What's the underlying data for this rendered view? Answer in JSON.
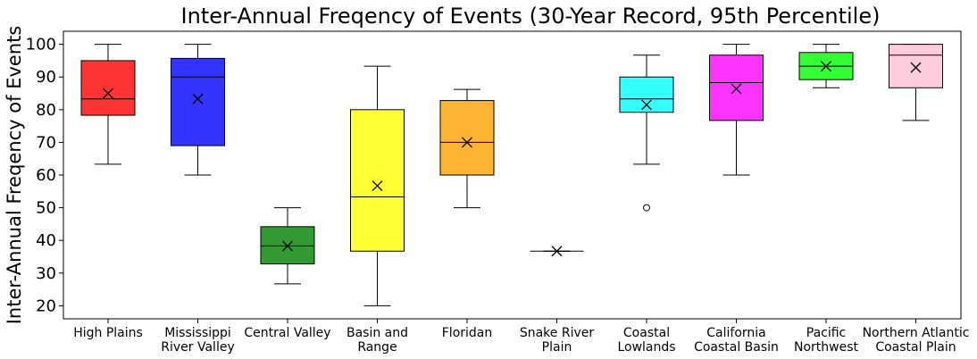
{
  "chart_data": {
    "type": "box",
    "title": "Inter-Annual Freqency of Events (30-Year Record, 95th Percentile)",
    "xlabel": "",
    "ylabel": "Inter-Annual Freqency of Events",
    "ylim": [
      16,
      104
    ],
    "yticks": [
      20,
      30,
      40,
      50,
      60,
      70,
      80,
      90,
      100
    ],
    "grid": false,
    "legend": "none",
    "categories": [
      {
        "label": "High Plains",
        "label_lines": [
          "High Plains"
        ],
        "color": "#ff3333",
        "whisker_low": 63.3,
        "q1": 78.3,
        "median": 83.3,
        "q3": 95.0,
        "whisker_high": 100.0,
        "mean": 85.0,
        "outliers": []
      },
      {
        "label": "Mississippi River Valley",
        "label_lines": [
          "Mississippi",
          "River Valley"
        ],
        "color": "#3333ff",
        "whisker_low": 60.0,
        "q1": 69.0,
        "median": 90.0,
        "q3": 95.7,
        "whisker_high": 100.0,
        "mean": 83.3,
        "outliers": []
      },
      {
        "label": "Central Valley",
        "label_lines": [
          "Central Valley"
        ],
        "color": "#339933",
        "whisker_low": 26.7,
        "q1": 32.8,
        "median": 38.3,
        "q3": 44.2,
        "whisker_high": 50.0,
        "mean": 38.3,
        "outliers": []
      },
      {
        "label": "Basin and Range",
        "label_lines": [
          "Basin and",
          "Range"
        ],
        "color": "#ffff33",
        "whisker_low": 20.0,
        "q1": 36.7,
        "median": 53.3,
        "q3": 80.0,
        "whisker_high": 93.3,
        "mean": 56.7,
        "outliers": []
      },
      {
        "label": "Floridan",
        "label_lines": [
          "Floridan"
        ],
        "color": "#ffb333",
        "whisker_low": 50.0,
        "q1": 60.0,
        "median": 70.0,
        "q3": 82.8,
        "whisker_high": 86.2,
        "mean": 70.0,
        "outliers": []
      },
      {
        "label": "Snake River Plain",
        "label_lines": [
          "Snake River",
          "Plain"
        ],
        "color": "#ffffff",
        "whisker_low": 36.7,
        "q1": 36.7,
        "median": 36.7,
        "q3": 36.7,
        "whisker_high": 36.7,
        "mean": 36.7,
        "outliers": []
      },
      {
        "label": "Coastal Lowlands",
        "label_lines": [
          "Coastal",
          "Lowlands"
        ],
        "color": "#33ffff",
        "whisker_low": 63.3,
        "q1": 79.2,
        "median": 83.3,
        "q3": 90.0,
        "whisker_high": 96.7,
        "mean": 81.5,
        "outliers": [
          50.0
        ]
      },
      {
        "label": "California Coastal Basin",
        "label_lines": [
          "California",
          "Coastal Basin"
        ],
        "color": "#ff33ff",
        "whisker_low": 60.0,
        "q1": 76.7,
        "median": 88.3,
        "q3": 96.7,
        "whisker_high": 100.0,
        "mean": 86.4,
        "outliers": []
      },
      {
        "label": "Pacific Northwest",
        "label_lines": [
          "Pacific",
          "Northwest"
        ],
        "color": "#33ff33",
        "whisker_low": 86.7,
        "q1": 89.2,
        "median": 93.3,
        "q3": 97.5,
        "whisker_high": 100.0,
        "mean": 93.3,
        "outliers": []
      },
      {
        "label": "Northern Atlantic Coastal Plain",
        "label_lines": [
          "Northern Atlantic",
          "Coastal Plain"
        ],
        "color": "#ffccdd",
        "whisker_low": 76.7,
        "q1": 86.7,
        "median": 96.7,
        "q3": 100.0,
        "whisker_high": 100.0,
        "mean": 92.9,
        "outliers": []
      }
    ]
  }
}
